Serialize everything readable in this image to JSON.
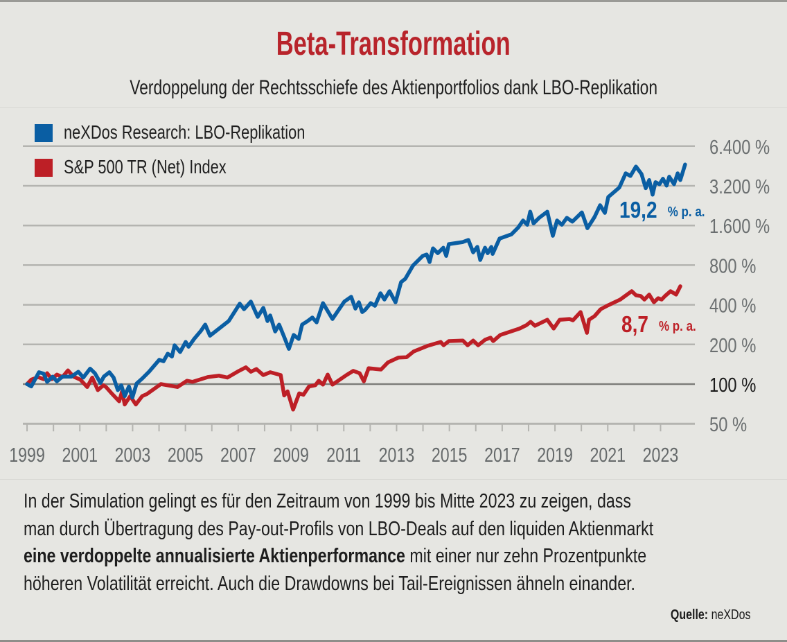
{
  "header": {
    "title": "Beta-Transformation",
    "subtitle": "Verdoppelung der Rechtsschiefe des Aktienportfolios dank LBO-Replikation"
  },
  "colors": {
    "title": "#b8242b",
    "blue_series": "#0a5ea3",
    "red_series": "#bd1f26",
    "background": "#e6e6e2",
    "gridline": "#b4b4b0",
    "baseline": "#7d7d7a"
  },
  "chart_data": {
    "type": "line",
    "title": "Beta-Transformation",
    "subtitle": "Verdoppelung der Rechtsschiefe des Aktienportfolios dank LBO-Replikation",
    "xlabel": "",
    "ylabel": "",
    "y_scale": "log2",
    "xlim": [
      1998.92,
      2024.3
    ],
    "ylim": [
      50,
      6400
    ],
    "grid": true,
    "legend_position": "top-left",
    "x_ticks": [
      1999,
      2000,
      2001,
      2002,
      2003,
      2004,
      2005,
      2006,
      2007,
      2008,
      2009,
      2010,
      2011,
      2012,
      2013,
      2014,
      2015,
      2016,
      2017,
      2018,
      2019,
      2020,
      2021,
      2022,
      2023
    ],
    "x_tick_labels": [
      "1999",
      "2001",
      "2003",
      "2005",
      "2007",
      "2009",
      "2011",
      "2013",
      "2015",
      "2017",
      "2019",
      "2021",
      "2023"
    ],
    "x_tick_label_values": [
      1999,
      2001,
      2003,
      2005,
      2007,
      2009,
      2011,
      2013,
      2015,
      2017,
      2019,
      2021,
      2023
    ],
    "y_ticks": [
      50,
      100,
      200,
      400,
      800,
      1600,
      3200,
      6400
    ],
    "y_tick_labels": [
      "50 %",
      "100 %",
      "200 %",
      "400 %",
      "800 %",
      "1.600 %",
      "3.200 %",
      "6.400 %"
    ],
    "baseline_value": 100,
    "series": [
      {
        "name": "neXDos Research: LBO-Replikation",
        "color": "#0a5ea3",
        "annotation": {
          "value": "19,2",
          "unit": "% p. a."
        },
        "points": [
          [
            1999.0,
            100
          ],
          [
            1999.16,
            96
          ],
          [
            1999.45,
            123
          ],
          [
            1999.63,
            120
          ],
          [
            1999.76,
            104
          ],
          [
            1999.97,
            114
          ],
          [
            2000.13,
            105
          ],
          [
            2000.34,
            114
          ],
          [
            2000.68,
            114
          ],
          [
            2000.94,
            124
          ],
          [
            2001.13,
            112
          ],
          [
            2001.39,
            131
          ],
          [
            2001.57,
            121
          ],
          [
            2001.78,
            102
          ],
          [
            2001.91,
            114
          ],
          [
            2002.12,
            123
          ],
          [
            2002.28,
            112
          ],
          [
            2002.44,
            90
          ],
          [
            2002.57,
            98
          ],
          [
            2002.7,
            81
          ],
          [
            2002.86,
            96
          ],
          [
            2002.99,
            79
          ],
          [
            2003.15,
            101
          ],
          [
            2003.36,
            110
          ],
          [
            2003.62,
            124
          ],
          [
            2004.01,
            153
          ],
          [
            2004.17,
            149
          ],
          [
            2004.33,
            170
          ],
          [
            2004.49,
            162
          ],
          [
            2004.59,
            197
          ],
          [
            2004.8,
            175
          ],
          [
            2005.01,
            209
          ],
          [
            2005.12,
            192
          ],
          [
            2005.33,
            220
          ],
          [
            2005.59,
            254
          ],
          [
            2005.75,
            283
          ],
          [
            2005.93,
            233
          ],
          [
            2006.64,
            301
          ],
          [
            2007.06,
            408
          ],
          [
            2007.22,
            370
          ],
          [
            2007.48,
            423
          ],
          [
            2007.74,
            324
          ],
          [
            2007.95,
            379
          ],
          [
            2008.11,
            301
          ],
          [
            2008.21,
            332
          ],
          [
            2008.4,
            251
          ],
          [
            2008.55,
            283
          ],
          [
            2008.74,
            228
          ],
          [
            2008.92,
            185
          ],
          [
            2009.1,
            236
          ],
          [
            2009.29,
            220
          ],
          [
            2009.42,
            283
          ],
          [
            2009.63,
            301
          ],
          [
            2009.81,
            320
          ],
          [
            2009.97,
            294
          ],
          [
            2010.21,
            412
          ],
          [
            2010.57,
            312
          ],
          [
            2011.02,
            423
          ],
          [
            2011.28,
            460
          ],
          [
            2011.44,
            374
          ],
          [
            2011.57,
            418
          ],
          [
            2011.7,
            352
          ],
          [
            2011.81,
            366
          ],
          [
            2012.02,
            412
          ],
          [
            2012.18,
            393
          ],
          [
            2012.39,
            489
          ],
          [
            2012.54,
            438
          ],
          [
            2012.73,
            507
          ],
          [
            2012.96,
            418
          ],
          [
            2013.17,
            594
          ],
          [
            2013.33,
            630
          ],
          [
            2013.62,
            793
          ],
          [
            2013.99,
            940
          ],
          [
            2014.14,
            963
          ],
          [
            2014.25,
            844
          ],
          [
            2014.38,
            1072
          ],
          [
            2014.56,
            985
          ],
          [
            2014.77,
            1085
          ],
          [
            2014.88,
            940
          ],
          [
            2014.98,
            1155
          ],
          [
            2015.51,
            1198
          ],
          [
            2015.72,
            1242
          ],
          [
            2015.9,
            1000
          ],
          [
            2016.06,
            1100
          ],
          [
            2016.17,
            875
          ],
          [
            2016.35,
            1085
          ],
          [
            2016.45,
            985
          ],
          [
            2016.59,
            1100
          ],
          [
            2016.64,
            973
          ],
          [
            2016.9,
            1273
          ],
          [
            2017.35,
            1370
          ],
          [
            2017.61,
            1545
          ],
          [
            2017.79,
            1745
          ],
          [
            2017.95,
            1620
          ],
          [
            2018.06,
            2037
          ],
          [
            2018.19,
            1660
          ],
          [
            2018.4,
            1829
          ],
          [
            2018.71,
            2037
          ],
          [
            2018.92,
            1335
          ],
          [
            2019.08,
            1745
          ],
          [
            2019.26,
            1620
          ],
          [
            2019.45,
            1829
          ],
          [
            2019.66,
            1710
          ],
          [
            2020.02,
            2010
          ],
          [
            2020.23,
            1525
          ],
          [
            2020.5,
            1855
          ],
          [
            2020.71,
            2278
          ],
          [
            2020.89,
            1992
          ],
          [
            2021.02,
            2630
          ],
          [
            2021.26,
            2895
          ],
          [
            2021.44,
            3110
          ],
          [
            2021.68,
            3980
          ],
          [
            2021.86,
            3800
          ],
          [
            2022.07,
            4480
          ],
          [
            2022.28,
            3930
          ],
          [
            2022.44,
            3070
          ],
          [
            2022.57,
            3540
          ],
          [
            2022.7,
            2740
          ],
          [
            2022.81,
            3410
          ],
          [
            2022.96,
            3290
          ],
          [
            2023.09,
            3620
          ],
          [
            2023.23,
            3210
          ],
          [
            2023.33,
            3750
          ],
          [
            2023.51,
            3290
          ],
          [
            2023.65,
            3980
          ],
          [
            2023.75,
            3540
          ],
          [
            2023.93,
            4640
          ]
        ]
      },
      {
        "name": "S&P 500 TR (Net) Index",
        "color": "#bd1f26",
        "annotation": {
          "value": "8,7",
          "unit": "% p. a."
        },
        "points": [
          [
            1999.0,
            100
          ],
          [
            1999.16,
            108
          ],
          [
            1999.42,
            113
          ],
          [
            1999.63,
            109
          ],
          [
            1999.76,
            121
          ],
          [
            1999.94,
            109
          ],
          [
            2000.13,
            118
          ],
          [
            2000.34,
            113
          ],
          [
            2000.55,
            127
          ],
          [
            2000.76,
            114
          ],
          [
            2001.02,
            108
          ],
          [
            2001.28,
            95
          ],
          [
            2001.47,
            112
          ],
          [
            2001.68,
            90
          ],
          [
            2001.89,
            98
          ],
          [
            2001.99,
            95
          ],
          [
            2002.23,
            84
          ],
          [
            2002.49,
            74
          ],
          [
            2002.6,
            88
          ],
          [
            2002.7,
            70
          ],
          [
            2002.91,
            81
          ],
          [
            2003.12,
            70
          ],
          [
            2003.36,
            81
          ],
          [
            2003.54,
            84
          ],
          [
            2004.07,
            100
          ],
          [
            2004.7,
            95
          ],
          [
            2005.06,
            106
          ],
          [
            2005.27,
            104
          ],
          [
            2005.85,
            113
          ],
          [
            2006.27,
            116
          ],
          [
            2006.59,
            112
          ],
          [
            2007.03,
            126
          ],
          [
            2007.29,
            134
          ],
          [
            2007.48,
            124
          ],
          [
            2007.69,
            130
          ],
          [
            2007.95,
            117
          ],
          [
            2008.21,
            123
          ],
          [
            2008.61,
            117
          ],
          [
            2008.74,
            82
          ],
          [
            2008.87,
            88
          ],
          [
            2009.08,
            64
          ],
          [
            2009.31,
            85
          ],
          [
            2009.47,
            83
          ],
          [
            2009.68,
            96
          ],
          [
            2009.92,
            98
          ],
          [
            2010.05,
            106
          ],
          [
            2010.21,
            99
          ],
          [
            2010.39,
            118
          ],
          [
            2010.57,
            99
          ],
          [
            2011.1,
            117
          ],
          [
            2011.36,
            126
          ],
          [
            2011.6,
            121
          ],
          [
            2011.76,
            105
          ],
          [
            2011.94,
            132
          ],
          [
            2012.41,
            129
          ],
          [
            2012.67,
            146
          ],
          [
            2013.07,
            159
          ],
          [
            2013.38,
            160
          ],
          [
            2013.65,
            177
          ],
          [
            2014.17,
            195
          ],
          [
            2014.67,
            209
          ],
          [
            2014.78,
            197
          ],
          [
            2014.98,
            212
          ],
          [
            2015.51,
            214
          ],
          [
            2015.69,
            197
          ],
          [
            2015.9,
            214
          ],
          [
            2016.09,
            197
          ],
          [
            2016.35,
            217
          ],
          [
            2016.56,
            225
          ],
          [
            2016.66,
            212
          ],
          [
            2016.93,
            236
          ],
          [
            2017.66,
            264
          ],
          [
            2017.92,
            280
          ],
          [
            2018.08,
            297
          ],
          [
            2018.24,
            277
          ],
          [
            2018.71,
            308
          ],
          [
            2018.95,
            264
          ],
          [
            2019.18,
            308
          ],
          [
            2019.55,
            312
          ],
          [
            2019.68,
            305
          ],
          [
            2019.97,
            352
          ],
          [
            2020.21,
            245
          ],
          [
            2020.29,
            308
          ],
          [
            2020.5,
            328
          ],
          [
            2020.73,
            370
          ],
          [
            2021.02,
            397
          ],
          [
            2021.47,
            438
          ],
          [
            2021.91,
            507
          ],
          [
            2022.07,
            472
          ],
          [
            2022.25,
            466
          ],
          [
            2022.39,
            438
          ],
          [
            2022.57,
            478
          ],
          [
            2022.75,
            418
          ],
          [
            2022.91,
            449
          ],
          [
            2023.04,
            438
          ],
          [
            2023.17,
            466
          ],
          [
            2023.38,
            507
          ],
          [
            2023.59,
            478
          ],
          [
            2023.75,
            553
          ]
        ]
      }
    ]
  },
  "legend": {
    "items": [
      {
        "label": "neXDos Research: LBO-Replikation",
        "color": "#0a5ea3"
      },
      {
        "label": "S&P 500 TR (Net) Index",
        "color": "#bd1f26"
      }
    ]
  },
  "footer": {
    "lines": [
      "In der Simulation gelingt es für den Zeitraum von 1999 bis Mitte 2023 zu zeigen, dass",
      "man durch Übertragung des Pay-out-Profils von LBO-Deals auf den liquiden Aktienmarkt"
    ],
    "line3_bold": "eine verdoppelte annualisierte Aktienperformance",
    "line3_rest": " mit einer nur zehn Prozentpunkte",
    "line4": "höheren Volatilität erreicht. Auch die Drawdowns bei Tail-Ereignissen ähneln einander.",
    "source_label": "Quelle:",
    "source_value": " neXDos"
  }
}
